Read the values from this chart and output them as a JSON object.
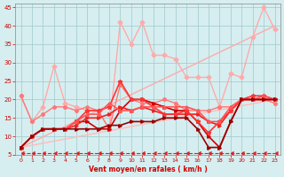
{
  "xlabel": "Vent moyen/en rafales ( km/h )",
  "xlim": [
    -0.5,
    23.5
  ],
  "ylim": [
    5,
    46
  ],
  "yticks": [
    5,
    10,
    15,
    20,
    25,
    30,
    35,
    40,
    45
  ],
  "xticks": [
    0,
    1,
    2,
    3,
    4,
    5,
    6,
    7,
    8,
    9,
    10,
    11,
    12,
    13,
    14,
    15,
    16,
    17,
    18,
    19,
    20,
    21,
    22,
    23
  ],
  "bg_color": "#d6eef0",
  "grid_color": "#a0c8cc",
  "lines": [
    {
      "x": [
        0,
        23
      ],
      "y": [
        7,
        40
      ],
      "color": "#ffaaaa",
      "lw": 1.0,
      "marker": "None",
      "ms": 0,
      "ls": "-"
    },
    {
      "x": [
        0,
        23
      ],
      "y": [
        7,
        20
      ],
      "color": "#ffbbbb",
      "lw": 1.0,
      "marker": "None",
      "ms": 0,
      "ls": "-"
    },
    {
      "x": [
        0,
        1,
        2,
        3,
        4,
        5,
        6,
        7,
        8,
        9,
        10,
        11,
        12,
        13,
        14,
        15,
        16,
        17,
        18,
        19,
        20,
        21,
        22,
        23
      ],
      "y": [
        21,
        14,
        18,
        29,
        19,
        18,
        17,
        17,
        12,
        41,
        35,
        41,
        32,
        32,
        31,
        26,
        26,
        26,
        18,
        27,
        26,
        37,
        45,
        39
      ],
      "color": "#ffaaaa",
      "lw": 1.0,
      "marker": "D",
      "ms": 2.5,
      "ls": "-"
    },
    {
      "x": [
        0,
        1,
        2,
        3,
        4,
        5,
        6,
        7,
        8,
        9,
        10,
        11,
        12,
        13,
        14,
        15,
        16,
        17,
        18,
        19,
        20,
        21,
        22,
        23
      ],
      "y": [
        21,
        14,
        16,
        18,
        18,
        17,
        18,
        17,
        12,
        24,
        20,
        19,
        19,
        20,
        19,
        17,
        17,
        17,
        18,
        18,
        20,
        20,
        20,
        19
      ],
      "color": "#ff7777",
      "lw": 1.0,
      "marker": "o",
      "ms": 2.5,
      "ls": "-"
    },
    {
      "x": [
        0,
        1,
        2,
        3,
        4,
        5,
        6,
        7,
        8,
        9,
        10,
        11,
        12,
        13,
        14,
        15,
        16,
        17,
        18,
        19,
        20,
        21,
        22,
        23
      ],
      "y": [
        7,
        10,
        12,
        12,
        12,
        14,
        14,
        12,
        12,
        17,
        20,
        20,
        19,
        18,
        17,
        17,
        14,
        10,
        7,
        14,
        20,
        20,
        20,
        20
      ],
      "color": "#cc0000",
      "lw": 1.2,
      "marker": ">",
      "ms": 2.5,
      "ls": "-"
    },
    {
      "x": [
        0,
        1,
        2,
        3,
        4,
        5,
        6,
        7,
        8,
        9,
        10,
        11,
        12,
        13,
        14,
        15,
        16,
        17,
        18,
        19,
        20,
        21,
        22,
        23
      ],
      "y": [
        7,
        10,
        12,
        12,
        12,
        13,
        15,
        15,
        16,
        18,
        17,
        18,
        17,
        16,
        16,
        16,
        16,
        14,
        13,
        17,
        20,
        20,
        20,
        20
      ],
      "color": "#ee2222",
      "lw": 1.2,
      "marker": ">",
      "ms": 2.5,
      "ls": "-"
    },
    {
      "x": [
        0,
        1,
        2,
        3,
        4,
        5,
        6,
        7,
        8,
        9,
        10,
        11,
        12,
        13,
        14,
        15,
        16,
        17,
        18,
        19,
        20,
        21,
        22,
        23
      ],
      "y": [
        7,
        10,
        12,
        12,
        12,
        14,
        17,
        17,
        18,
        25,
        20,
        20,
        18,
        16,
        16,
        17,
        14,
        11,
        14,
        17,
        20,
        21,
        21,
        20
      ],
      "color": "#ff3333",
      "lw": 1.2,
      "marker": "*",
      "ms": 3.5,
      "ls": "-"
    },
    {
      "x": [
        0,
        1,
        2,
        3,
        4,
        5,
        6,
        7,
        8,
        9,
        10,
        11,
        12,
        13,
        14,
        15,
        16,
        17,
        18,
        19,
        20,
        21,
        22,
        23
      ],
      "y": [
        7,
        10,
        12,
        12,
        12,
        14,
        16,
        16,
        19,
        17,
        17,
        18,
        18,
        18,
        18,
        18,
        17,
        14,
        14,
        18,
        20,
        20,
        21,
        20
      ],
      "color": "#ff5555",
      "lw": 1.2,
      "marker": "^",
      "ms": 2.5,
      "ls": "-"
    },
    {
      "x": [
        0,
        1,
        2,
        3,
        4,
        5,
        6,
        7,
        8,
        9,
        10,
        11,
        12,
        13,
        14,
        15,
        16,
        17,
        18,
        19,
        20,
        21,
        22,
        23
      ],
      "y": [
        7,
        10,
        12,
        12,
        12,
        12,
        12,
        12,
        13,
        13,
        14,
        14,
        14,
        15,
        15,
        15,
        12,
        7,
        7,
        14,
        20,
        20,
        20,
        20
      ],
      "color": "#990000",
      "lw": 1.2,
      "marker": ">",
      "ms": 2.5,
      "ls": "-"
    },
    {
      "x": [
        0,
        1,
        2,
        3,
        4,
        5,
        6,
        7,
        8,
        9,
        10,
        11,
        12,
        13,
        14,
        15,
        16,
        17,
        18,
        19,
        20,
        21,
        22,
        23
      ],
      "y": [
        5.5,
        5.5,
        5.5,
        5.5,
        5.5,
        5.5,
        5.5,
        5.5,
        5.5,
        5.5,
        5.5,
        5.5,
        5.5,
        5.5,
        5.5,
        5.5,
        5.5,
        5.5,
        5.5,
        5.5,
        5.5,
        5.5,
        5.5,
        5.5
      ],
      "color": "#dd2222",
      "lw": 0.8,
      "marker": 4,
      "ms": 3,
      "ls": "--"
    }
  ]
}
